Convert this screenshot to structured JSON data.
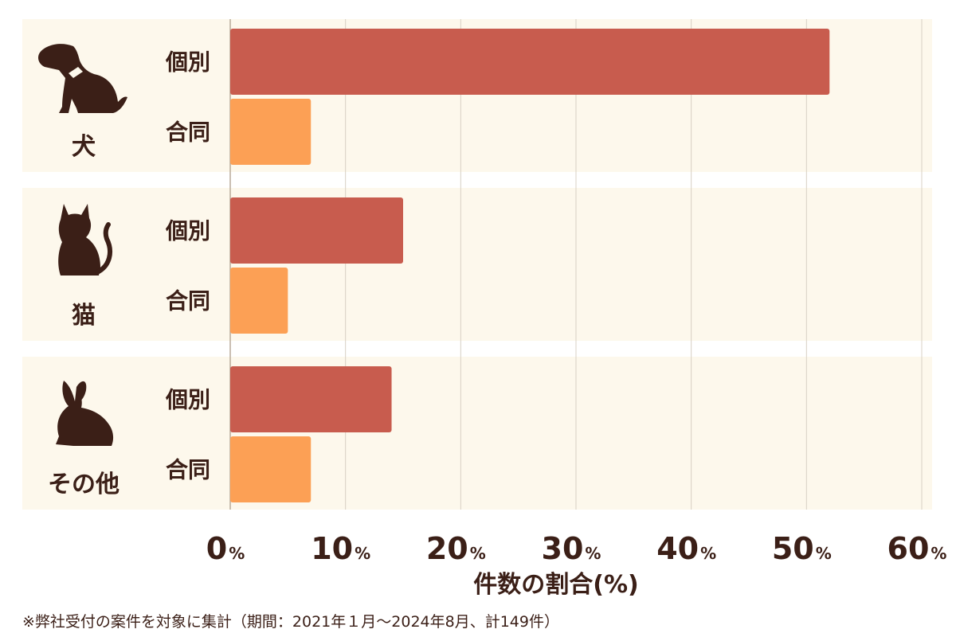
{
  "chart_data": {
    "type": "bar",
    "orientation": "horizontal",
    "categories": [
      "犬",
      "猫",
      "その他"
    ],
    "series": [
      {
        "name": "個別",
        "color": "#c85c4e",
        "values": [
          52,
          15,
          14
        ]
      },
      {
        "name": "合同",
        "color": "#fca055",
        "values": [
          7,
          5,
          7
        ]
      }
    ],
    "xlabel": "件数の割合(%)",
    "xlim": [
      0,
      60
    ],
    "ticks": [
      {
        "value": 0,
        "label": "0",
        "unit": "%"
      },
      {
        "value": 10,
        "label": "10",
        "unit": "%"
      },
      {
        "value": 20,
        "label": "20",
        "unit": "%"
      },
      {
        "value": 30,
        "label": "30",
        "unit": "%"
      },
      {
        "value": 40,
        "label": "40",
        "unit": "%"
      },
      {
        "value": 50,
        "label": "50",
        "unit": "%"
      },
      {
        "value": 60,
        "label": "60",
        "unit": "%"
      }
    ],
    "grid": true,
    "panel_color": "#fdf8ec",
    "icons": [
      "dog-icon",
      "cat-icon",
      "rabbit-icon"
    ]
  },
  "footnote": "※弊社受付の案件を対象に集計（期間：2021年１月〜2024年8月、計149件）"
}
